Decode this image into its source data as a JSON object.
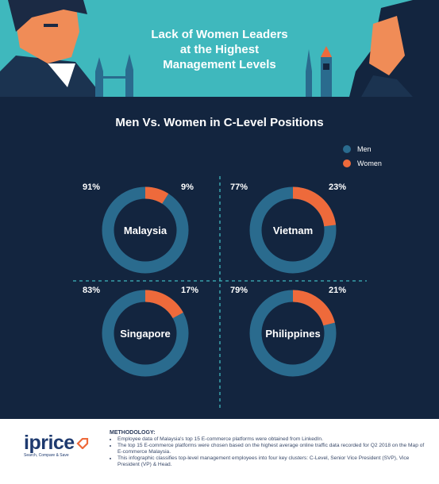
{
  "header": {
    "title_lines": [
      "Lack of Women Leaders",
      "at the Highest",
      "Management Levels"
    ]
  },
  "colors": {
    "men": "#2a6b8e",
    "women": "#ee6a3b",
    "background": "#13253f",
    "banner": "#3fb8bd"
  },
  "chart_data": {
    "type": "pie",
    "title": "Men Vs. Women in C-Level Positions",
    "legend": [
      "Men",
      "Women"
    ],
    "legend_position": "top-right",
    "charts": [
      {
        "label": "Malaysia",
        "men": 91,
        "women": 9,
        "men_label": "91%",
        "women_label": "9%"
      },
      {
        "label": "Vietnam",
        "men": 77,
        "women": 23,
        "men_label": "77%",
        "women_label": "23%"
      },
      {
        "label": "Singapore",
        "men": 83,
        "women": 17,
        "men_label": "83%",
        "women_label": "17%"
      },
      {
        "label": "Philippines",
        "men": 79,
        "women": 21,
        "men_label": "79%",
        "women_label": "21%"
      }
    ]
  },
  "footer": {
    "logo_text": "iprice",
    "logo_tagline": "Search, Compare & Save",
    "methodology_title": "METHODOLOGY:",
    "methodology_items": [
      "Employee data of Malaysia's top 15 E-commerce platforms were obtained from LinkedIn.",
      "The top 15 E-commerce platforms were chosen based on the highest average online traffic data recorded for Q2 2018 on the Map of E-commerce Malaysia.",
      "This infographic classifies top-level management employees into four key clusters: C-Level, Senior Vice President (SVP), Vice President (VP) & Head."
    ]
  }
}
